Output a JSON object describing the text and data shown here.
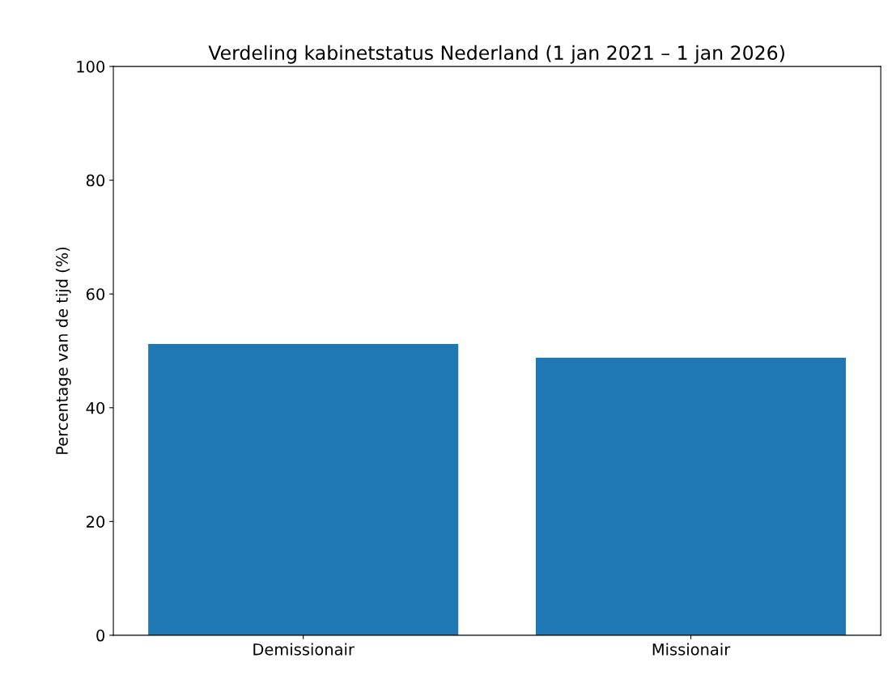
{
  "chart_data": {
    "type": "bar",
    "title": "Verdeling kabinetstatus Nederland (1 jan 2021 – 1 jan 2026)",
    "ylabel": "Percentage van de tijd (%)",
    "categories": [
      "Demissionair",
      "Missionair"
    ],
    "values": [
      51.2,
      48.8
    ],
    "color": "#1f77b4",
    "ylim": [
      0,
      100
    ],
    "yticks": [
      0,
      20,
      40,
      60,
      80,
      100
    ],
    "grid": false
  }
}
